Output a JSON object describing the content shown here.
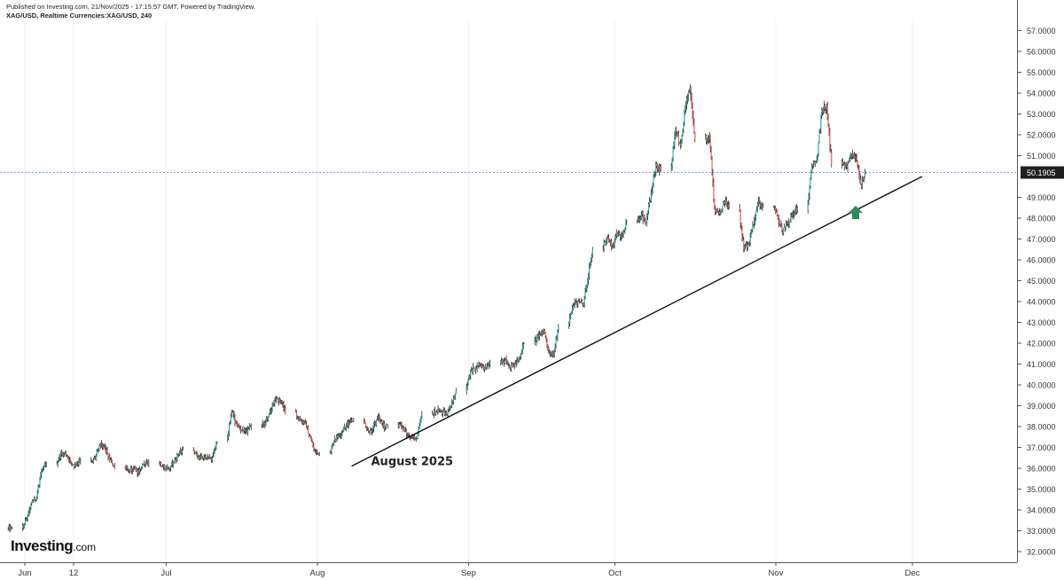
{
  "header": {
    "published": "Published on Investing.com, 21/Nov/2025 - 17:15:57 GMT, Powered by TradingView.",
    "symbol": "XAG/USD, Realtime Currencies:XAG/USD, 240"
  },
  "logo": {
    "main": "Investing",
    "suffix": ".com"
  },
  "colors": {
    "up": "#26a69a",
    "down": "#ef5350",
    "wick": "#111111",
    "trendline": "#111111",
    "price_line": "#4d7fe0",
    "arrow": "#2e8b57",
    "price_label_bg": "#1e1e1e"
  },
  "chart_data": {
    "type": "candlestick",
    "ylim": [
      31.5,
      57.2
    ],
    "y_ticks": [
      {
        "value": 32,
        "label": "32.0000"
      },
      {
        "value": 33,
        "label": "33.0000"
      },
      {
        "value": 34,
        "label": "34.0000"
      },
      {
        "value": 35,
        "label": "35.0000"
      },
      {
        "value": 36,
        "label": "36.0000"
      },
      {
        "value": 37,
        "label": "37.0000"
      },
      {
        "value": 38,
        "label": "38.0000"
      },
      {
        "value": 39,
        "label": "39.0000"
      },
      {
        "value": 40,
        "label": "40.0000"
      },
      {
        "value": 41,
        "label": "41.0000"
      },
      {
        "value": 42,
        "label": "42.0000"
      },
      {
        "value": 43,
        "label": "43.0000"
      },
      {
        "value": 44,
        "label": "44.0000"
      },
      {
        "value": 45,
        "label": "45.0000"
      },
      {
        "value": 46,
        "label": "46.0000"
      },
      {
        "value": 47,
        "label": "47.0000"
      },
      {
        "value": 48,
        "label": "48.0000"
      },
      {
        "value": 49,
        "label": "49.0000"
      },
      {
        "value": 51,
        "label": "51.0000"
      },
      {
        "value": 52,
        "label": "52.0000"
      },
      {
        "value": 53,
        "label": "53.0000"
      },
      {
        "value": 54,
        "label": "54.0000"
      },
      {
        "value": 55,
        "label": "55.0000"
      },
      {
        "value": 56,
        "label": "56.0000"
      },
      {
        "value": 57,
        "label": "57.0000"
      }
    ],
    "x_ticks": [
      {
        "date": "2025-06-02",
        "label": "Jun"
      },
      {
        "date": "2025-06-12",
        "label": "12"
      },
      {
        "date": "2025-07-01",
        "label": "Jul"
      },
      {
        "date": "2025-08-01",
        "label": "Aug"
      },
      {
        "date": "2025-09-01",
        "label": "Sep"
      },
      {
        "date": "2025-10-01",
        "label": "Oct"
      },
      {
        "date": "2025-11-03",
        "label": "Nov"
      },
      {
        "date": "2025-12-01",
        "label": "Dec"
      }
    ],
    "last_price": {
      "value": 50.1905,
      "label": "50.1905"
    },
    "trendline": {
      "start": {
        "date": "2025-08-08",
        "price": 36.1
      },
      "end": {
        "date": "2025-12-03",
        "price": 50.0
      }
    },
    "annotation": {
      "text": "August 2025"
    },
    "arrow": {
      "date": "2025-11-19",
      "price": 48.3,
      "direction": "up"
    },
    "daily_closes": [
      [
        "2025-05-30",
        33.1
      ],
      [
        "2025-06-02",
        33.6
      ],
      [
        "2025-06-03",
        34.4
      ],
      [
        "2025-06-04",
        34.6
      ],
      [
        "2025-06-05",
        35.9
      ],
      [
        "2025-06-06",
        36.2
      ],
      [
        "2025-06-09",
        36.7
      ],
      [
        "2025-06-10",
        36.6
      ],
      [
        "2025-06-11",
        36.3
      ],
      [
        "2025-06-12",
        36.1
      ],
      [
        "2025-06-13",
        36.4
      ],
      [
        "2025-06-16",
        36.5
      ],
      [
        "2025-06-17",
        37.1
      ],
      [
        "2025-06-18",
        37.0
      ],
      [
        "2025-06-19",
        36.4
      ],
      [
        "2025-06-20",
        36.1
      ],
      [
        "2025-06-23",
        35.9
      ],
      [
        "2025-06-24",
        36.0
      ],
      [
        "2025-06-25",
        35.8
      ],
      [
        "2025-06-26",
        36.2
      ],
      [
        "2025-06-27",
        36.3
      ],
      [
        "2025-06-30",
        36.1
      ],
      [
        "2025-07-01",
        36.0
      ],
      [
        "2025-07-02",
        36.3
      ],
      [
        "2025-07-03",
        36.6
      ],
      [
        "2025-07-04",
        36.9
      ],
      [
        "2025-07-07",
        36.6
      ],
      [
        "2025-07-08",
        36.5
      ],
      [
        "2025-07-09",
        36.6
      ],
      [
        "2025-07-10",
        36.5
      ],
      [
        "2025-07-11",
        37.3
      ],
      [
        "2025-07-14",
        38.7
      ],
      [
        "2025-07-15",
        38.1
      ],
      [
        "2025-07-16",
        37.8
      ],
      [
        "2025-07-17",
        37.8
      ],
      [
        "2025-07-18",
        38.0
      ],
      [
        "2025-07-21",
        38.2
      ],
      [
        "2025-07-22",
        38.8
      ],
      [
        "2025-07-23",
        39.3
      ],
      [
        "2025-07-24",
        39.2
      ],
      [
        "2025-07-25",
        38.7
      ],
      [
        "2025-07-28",
        38.3
      ],
      [
        "2025-07-29",
        38.2
      ],
      [
        "2025-07-30",
        37.6
      ],
      [
        "2025-07-31",
        36.8
      ],
      [
        "2025-08-01",
        36.7
      ],
      [
        "2025-08-04",
        37.3
      ],
      [
        "2025-08-05",
        37.6
      ],
      [
        "2025-08-06",
        37.9
      ],
      [
        "2025-08-07",
        38.2
      ],
      [
        "2025-08-08",
        38.3
      ],
      [
        "2025-08-11",
        37.8
      ],
      [
        "2025-08-12",
        37.9
      ],
      [
        "2025-08-13",
        38.5
      ],
      [
        "2025-08-14",
        38.0
      ],
      [
        "2025-08-15",
        38.1
      ],
      [
        "2025-08-18",
        38.0
      ],
      [
        "2025-08-19",
        37.6
      ],
      [
        "2025-08-20",
        37.5
      ],
      [
        "2025-08-21",
        37.4
      ],
      [
        "2025-08-22",
        38.6
      ],
      [
        "2025-08-25",
        38.8
      ],
      [
        "2025-08-26",
        38.7
      ],
      [
        "2025-08-27",
        38.6
      ],
      [
        "2025-08-28",
        39.0
      ],
      [
        "2025-08-29",
        39.7
      ],
      [
        "2025-09-01",
        40.7
      ],
      [
        "2025-09-02",
        40.8
      ],
      [
        "2025-09-03",
        41.0
      ],
      [
        "2025-09-04",
        40.8
      ],
      [
        "2025-09-05",
        41.0
      ],
      [
        "2025-09-08",
        41.2
      ],
      [
        "2025-09-09",
        40.9
      ],
      [
        "2025-09-10",
        41.1
      ],
      [
        "2025-09-11",
        41.3
      ],
      [
        "2025-09-12",
        42.0
      ],
      [
        "2025-09-15",
        42.3
      ],
      [
        "2025-09-16",
        42.6
      ],
      [
        "2025-09-17",
        41.7
      ],
      [
        "2025-09-18",
        41.5
      ],
      [
        "2025-09-19",
        42.8
      ],
      [
        "2025-09-22",
        43.8
      ],
      [
        "2025-09-23",
        44.0
      ],
      [
        "2025-09-24",
        43.8
      ],
      [
        "2025-09-25",
        45.0
      ],
      [
        "2025-09-26",
        46.5
      ],
      [
        "2025-09-29",
        47.1
      ],
      [
        "2025-09-30",
        46.6
      ],
      [
        "2025-10-01",
        47.3
      ],
      [
        "2025-10-02",
        47.2
      ],
      [
        "2025-10-03",
        47.9
      ],
      [
        "2025-10-06",
        48.2
      ],
      [
        "2025-10-07",
        47.8
      ],
      [
        "2025-10-08",
        49.2
      ],
      [
        "2025-10-09",
        50.5
      ],
      [
        "2025-10-10",
        50.3
      ],
      [
        "2025-10-13",
        52.3
      ],
      [
        "2025-10-14",
        51.5
      ],
      [
        "2025-10-15",
        53.2
      ],
      [
        "2025-10-16",
        54.3
      ],
      [
        "2025-10-17",
        51.8
      ],
      [
        "2025-10-20",
        52.0
      ],
      [
        "2025-10-21",
        48.5
      ],
      [
        "2025-10-22",
        48.2
      ],
      [
        "2025-10-23",
        48.8
      ],
      [
        "2025-10-24",
        48.5
      ],
      [
        "2025-10-27",
        46.5
      ],
      [
        "2025-10-28",
        46.8
      ],
      [
        "2025-10-29",
        47.7
      ],
      [
        "2025-10-30",
        48.8
      ],
      [
        "2025-10-31",
        48.6
      ],
      [
        "2025-11-03",
        48.0
      ],
      [
        "2025-11-04",
        47.3
      ],
      [
        "2025-11-05",
        47.8
      ],
      [
        "2025-11-06",
        48.2
      ],
      [
        "2025-11-07",
        48.4
      ],
      [
        "2025-11-10",
        50.5
      ],
      [
        "2025-11-11",
        50.8
      ],
      [
        "2025-11-12",
        53.2
      ],
      [
        "2025-11-13",
        53.4
      ],
      [
        "2025-11-14",
        50.6
      ],
      [
        "2025-11-17",
        50.5
      ],
      [
        "2025-11-18",
        51.0
      ],
      [
        "2025-11-19",
        50.9
      ],
      [
        "2025-11-20",
        49.6
      ],
      [
        "2025-11-21",
        50.19
      ]
    ]
  }
}
